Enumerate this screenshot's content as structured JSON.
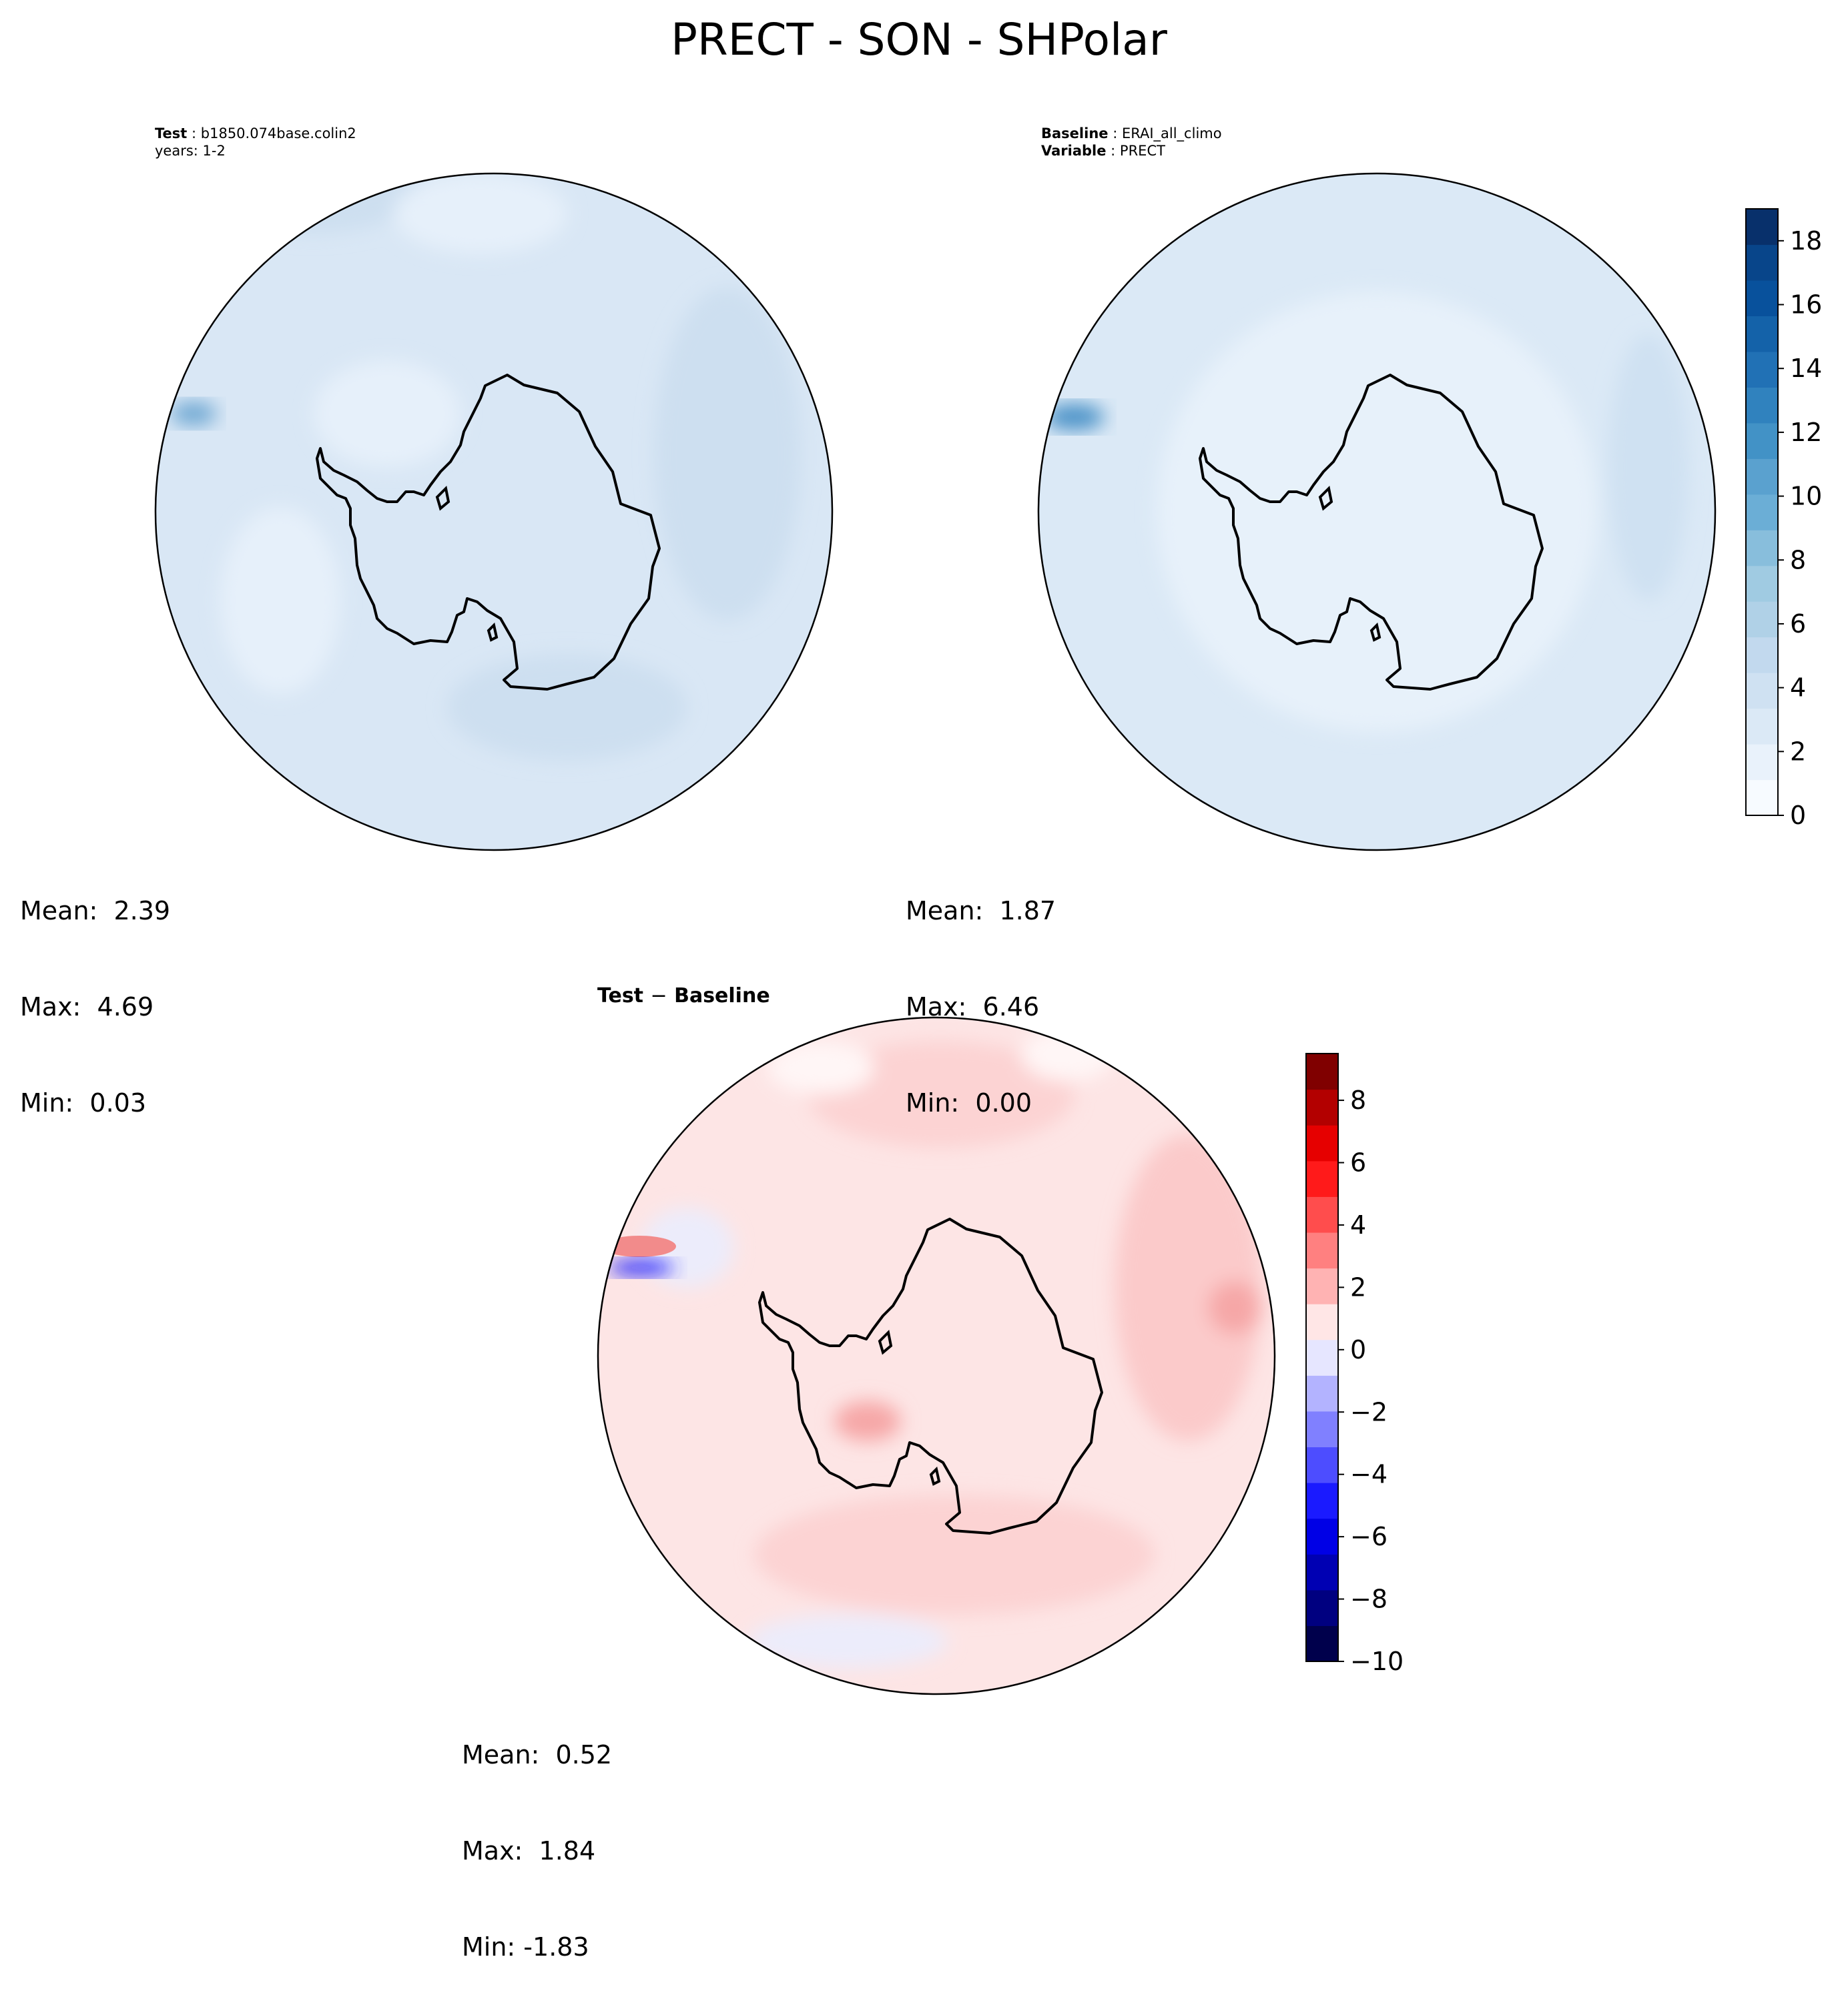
{
  "title": "PRECT - SON - SHPolar",
  "colors": {
    "seq": [
      "#f7fbff",
      "#e9f2fb",
      "#dbe9f6",
      "#cfe1f2",
      "#c2d9ee",
      "#b0d1e7",
      "#a0cbe2",
      "#88bedc",
      "#6baed6",
      "#5aa1cf",
      "#4292c6",
      "#3082be",
      "#2171b5",
      "#1462a9",
      "#08519c",
      "#08458a",
      "#08306b"
    ],
    "div": [
      "#00004c",
      "#000080",
      "#0000b3",
      "#0000e6",
      "#1a1aff",
      "#4d4dff",
      "#8080ff",
      "#b3b3ff",
      "#e6e6ff",
      "#ffe6e6",
      "#ffb3b3",
      "#ff8080",
      "#ff4d4d",
      "#ff1a1a",
      "#e60000",
      "#b30000",
      "#800000"
    ]
  },
  "panels": {
    "test": {
      "label_key": "Test",
      "label_value": "b1850.074base.colin2",
      "years": "years: 1-2",
      "mean": "Mean:  2.39",
      "max": "Max:  4.69",
      "min": "Min:  0.03"
    },
    "baseline": {
      "label_key": "Baseline",
      "label_value": "ERAI_all_climo",
      "variable_key": "Variable",
      "variable_value": "PRECT",
      "mean": "Mean:  1.87",
      "max": "Max:  6.46",
      "min": "Min:  0.00"
    },
    "diff": {
      "title_a": "Test",
      "title_sep": "−",
      "title_b": "Baseline",
      "mean": "Mean:  0.52",
      "max": "Max:  1.84",
      "min": "Min: -1.83"
    }
  },
  "chart_data": [
    {
      "type": "heatmap",
      "projection": "south-polar-stereographic",
      "name": "Test",
      "subtitle": "Test : b1850.074base.colin2, years: 1-2",
      "stats": {
        "mean": 2.39,
        "max": 4.69,
        "min": 0.03
      }
    },
    {
      "type": "heatmap",
      "projection": "south-polar-stereographic",
      "name": "Baseline",
      "subtitle": "Baseline : ERAI_all_climo, Variable : PRECT",
      "stats": {
        "mean": 1.87,
        "max": 6.46,
        "min": 0.0
      },
      "colorbar": {
        "range": [
          0,
          19
        ],
        "ticks": [
          0,
          2,
          4,
          6,
          8,
          10,
          12,
          14,
          16,
          18
        ],
        "tick_labels": [
          "0",
          "2",
          "4",
          "6",
          "8",
          "10",
          "12",
          "14",
          "16",
          "18"
        ]
      }
    },
    {
      "type": "heatmap",
      "projection": "south-polar-stereographic",
      "name": "Test − Baseline",
      "stats": {
        "mean": 0.52,
        "max": 1.84,
        "min": -1.83
      },
      "colorbar": {
        "range": [
          -10,
          9.5
        ],
        "ticks": [
          -10,
          -8,
          -6,
          -4,
          -2,
          0,
          2,
          4,
          6,
          8
        ],
        "tick_labels": [
          "−10",
          "−8",
          "−6",
          "−4",
          "−2",
          "0",
          "2",
          "4",
          "6",
          "8"
        ]
      }
    }
  ]
}
